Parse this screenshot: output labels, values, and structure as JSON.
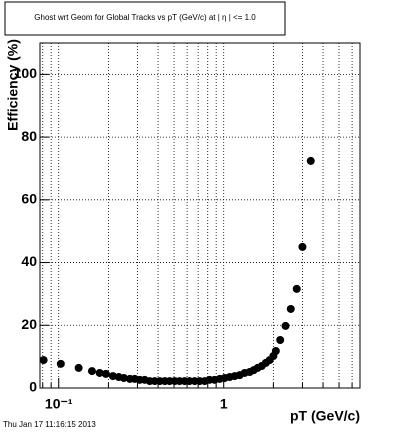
{
  "chart_data": {
    "type": "scatter",
    "title": "Ghost wrt Geom for Global Tracks vs pT (GeV/c) at | η | <= 1.0",
    "x_label": "pT (GeV/c)",
    "y_label": "Efficiency (%)",
    "footer": "Thu Jan 17 11:16:15 2013",
    "x_log": true,
    "grid": true,
    "color": "#000000",
    "xlim": [
      0.077,
      6.7
    ],
    "ylim": [
      0,
      110
    ],
    "xticks": [
      {
        "value": 0.1,
        "label": "10⁻¹"
      },
      1
    ],
    "xgrid": [
      0.08,
      0.09,
      0.2,
      0.3,
      0.4,
      0.5,
      0.6,
      0.7,
      0.8,
      0.9,
      2,
      3,
      4,
      5,
      6
    ],
    "yticks": [
      0,
      20,
      40,
      60,
      80,
      100
    ],
    "x": [
      0.081,
      0.103,
      0.132,
      0.159,
      0.177,
      0.193,
      0.213,
      0.231,
      0.248,
      0.27,
      0.289,
      0.31,
      0.332,
      0.356,
      0.382,
      0.41,
      0.44,
      0.47,
      0.505,
      0.54,
      0.58,
      0.62,
      0.667,
      0.715,
      0.767,
      0.82,
      0.88,
      0.946,
      1.014,
      1.087,
      1.166,
      1.25,
      1.34,
      1.437,
      1.52,
      1.606,
      1.7,
      1.8,
      1.9,
      2.0,
      2.07,
      2.2,
      2.37,
      2.55,
      2.77,
      3.0,
      3.37
    ],
    "values": [
      8.9,
      7.7,
      6.4,
      5.4,
      4.8,
      4.5,
      3.8,
      3.5,
      3.2,
      2.9,
      2.9,
      2.6,
      2.6,
      2.2,
      2.2,
      2.2,
      2.2,
      2.2,
      2.2,
      2.2,
      2.2,
      2.2,
      2.2,
      2.2,
      2.2,
      2.6,
      2.6,
      2.9,
      3.2,
      3.5,
      3.8,
      4.1,
      4.8,
      5.1,
      5.7,
      6.4,
      7.0,
      8.0,
      8.9,
      10.2,
      11.8,
      15.3,
      19.8,
      25.2,
      31.6,
      45,
      72.4
    ]
  }
}
